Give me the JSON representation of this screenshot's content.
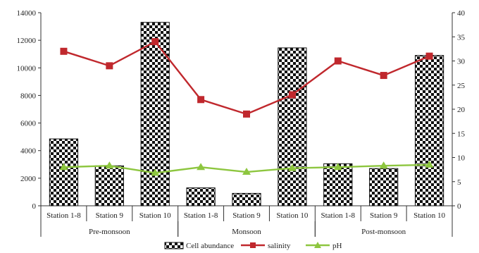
{
  "chart_data": {
    "type": "bar",
    "title": "",
    "categories": [
      "Station 1-8",
      "Station 9",
      "Station 10",
      "Station 1-8",
      "Station 9",
      "Station 10",
      "Station 1-8",
      "Station 9",
      "Station 10"
    ],
    "groups": [
      {
        "label": "Pre-monsoon",
        "span": [
          0,
          2
        ]
      },
      {
        "label": "Monsoon",
        "span": [
          3,
          5
        ]
      },
      {
        "label": "Post-monsoon",
        "span": [
          6,
          8
        ]
      }
    ],
    "y_left": {
      "min": 0,
      "max": 14000,
      "step": 2000
    },
    "y_right": {
      "min": 0,
      "max": 40,
      "step": 5
    },
    "series": [
      {
        "name": "Cell abundance",
        "type": "bar",
        "axis": "left",
        "values": [
          4850,
          2900,
          13300,
          1300,
          900,
          11450,
          3050,
          2700,
          10900
        ]
      },
      {
        "name": "salinity",
        "type": "line",
        "axis": "right",
        "color": "#c0282d",
        "marker": "square",
        "values": [
          32,
          29,
          34,
          22,
          19,
          23,
          30,
          27,
          31
        ]
      },
      {
        "name": "pH",
        "type": "line",
        "axis": "right",
        "color": "#8dc63f",
        "marker": "triangle",
        "values": [
          8.0,
          8.3,
          6.8,
          8.0,
          7.0,
          7.8,
          8.0,
          8.3,
          8.5
        ]
      }
    ],
    "legend": {
      "position": "bottom"
    },
    "grid": false
  }
}
